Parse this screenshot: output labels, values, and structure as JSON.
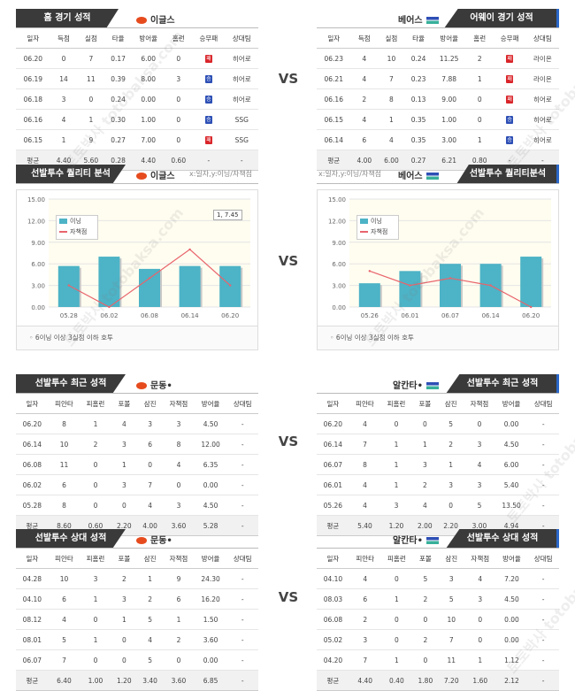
{
  "vs_label": "VS",
  "watermark": "토토박사 totobaksa.com",
  "recent": {
    "left": {
      "title": "홈 경기 성적",
      "team": "이글스",
      "headers": [
        "일자",
        "득점",
        "실점",
        "타율",
        "방어율",
        "홈런",
        "승무패",
        "상대팀"
      ],
      "rows": [
        [
          "06.20",
          "0",
          "7",
          "0.17",
          "6.00",
          "0",
          "패",
          "히어로"
        ],
        [
          "06.19",
          "14",
          "11",
          "0.39",
          "8.00",
          "3",
          "승",
          "히어로"
        ],
        [
          "06.18",
          "3",
          "0",
          "0.24",
          "0.00",
          "0",
          "승",
          "히어로"
        ],
        [
          "06.16",
          "4",
          "1",
          "0.30",
          "1.00",
          "0",
          "승",
          "SSG"
        ],
        [
          "06.15",
          "1",
          "9",
          "0.27",
          "7.00",
          "0",
          "패",
          "SSG"
        ]
      ],
      "avg": [
        "평균",
        "4.40",
        "5.60",
        "0.28",
        "4.40",
        "0.60",
        "-",
        "-"
      ]
    },
    "right": {
      "title": "어웨이 경기 성적",
      "team": "베어스",
      "headers": [
        "일자",
        "득점",
        "실점",
        "타율",
        "방어율",
        "홈런",
        "승무패",
        "상대팀"
      ],
      "rows": [
        [
          "06.23",
          "4",
          "10",
          "0.24",
          "11.25",
          "2",
          "패",
          "라이온"
        ],
        [
          "06.21",
          "4",
          "7",
          "0.23",
          "7.88",
          "1",
          "패",
          "라이온"
        ],
        [
          "06.16",
          "2",
          "8",
          "0.13",
          "9.00",
          "0",
          "패",
          "히어로"
        ],
        [
          "06.15",
          "4",
          "1",
          "0.35",
          "1.00",
          "0",
          "승",
          "히어로"
        ],
        [
          "06.14",
          "6",
          "4",
          "0.35",
          "3.00",
          "1",
          "승",
          "히어로"
        ]
      ],
      "avg": [
        "평균",
        "4.00",
        "6.00",
        "0.27",
        "6.21",
        "0.80",
        "-",
        "-"
      ]
    }
  },
  "quality": {
    "left": {
      "title": "선발투수 퀄리티 분석",
      "team": "이글스",
      "axis_note": "x:일자,y:이닝/자책점",
      "tooltip": "1, 7.45",
      "note": "6이닝 이상 3실점 이하 호투"
    },
    "right": {
      "title": "선발투수 퀄리티분석",
      "team": "베어스",
      "axis_note": "x:일자,y:이닝/자책점",
      "note": "6이닝 이상 3실점 이하 호투"
    }
  },
  "chart_data": [
    {
      "type": "bar",
      "categories": [
        "05.28",
        "06.02",
        "06.08",
        "06.14",
        "06.20"
      ],
      "series": [
        {
          "name": "이닝",
          "kind": "bar",
          "values": [
            5.7,
            7.0,
            5.3,
            5.7,
            5.7
          ]
        },
        {
          "name": "자책점",
          "kind": "line",
          "values": [
            3,
            0,
            4,
            8,
            3
          ]
        }
      ],
      "yticks": [
        "0.00",
        "3.00",
        "6.00",
        "9.00",
        "12.00",
        "15.00"
      ],
      "ylim": [
        0,
        15
      ],
      "colors": {
        "bar": "#4db3c6",
        "line": "#e8646c"
      }
    },
    {
      "type": "bar",
      "categories": [
        "05.26",
        "06.01",
        "06.07",
        "06.14",
        "06.20"
      ],
      "series": [
        {
          "name": "이닝",
          "kind": "bar",
          "values": [
            3.3,
            5.0,
            6.0,
            6.0,
            7.0
          ]
        },
        {
          "name": "자책점",
          "kind": "line",
          "values": [
            5,
            3,
            4,
            3,
            0
          ]
        }
      ],
      "yticks": [
        "0.00",
        "3.00",
        "6.00",
        "9.00",
        "12.00",
        "15.00"
      ],
      "ylim": [
        0,
        15
      ],
      "colors": {
        "bar": "#4db3c6",
        "line": "#e8646c"
      }
    }
  ],
  "pitch_recent": {
    "left": {
      "title": "선발투수 최근 성적",
      "team": "문동•",
      "headers": [
        "일자",
        "피안타",
        "피홈런",
        "포볼",
        "삼진",
        "자책점",
        "방어율",
        "상대팀"
      ],
      "rows": [
        [
          "06.20",
          "8",
          "1",
          "4",
          "3",
          "3",
          "4.50",
          "-"
        ],
        [
          "06.14",
          "10",
          "2",
          "3",
          "6",
          "8",
          "12.00",
          "-"
        ],
        [
          "06.08",
          "11",
          "0",
          "1",
          "0",
          "4",
          "6.35",
          "-"
        ],
        [
          "06.02",
          "6",
          "0",
          "3",
          "7",
          "0",
          "0.00",
          "-"
        ],
        [
          "05.28",
          "8",
          "0",
          "0",
          "4",
          "3",
          "4.50",
          "-"
        ]
      ],
      "avg": [
        "평균",
        "8.60",
        "0.60",
        "2.20",
        "4.00",
        "3.60",
        "5.28",
        "-"
      ]
    },
    "right": {
      "title": "선발투수 최근 성적",
      "team": "알칸타•",
      "headers": [
        "일자",
        "피안타",
        "피홈런",
        "포볼",
        "삼진",
        "자책점",
        "방어율",
        "상대팀"
      ],
      "rows": [
        [
          "06.20",
          "4",
          "0",
          "0",
          "5",
          "0",
          "0.00",
          "-"
        ],
        [
          "06.14",
          "7",
          "1",
          "1",
          "2",
          "3",
          "4.50",
          "-"
        ],
        [
          "06.07",
          "8",
          "1",
          "3",
          "1",
          "4",
          "6.00",
          "-"
        ],
        [
          "06.01",
          "4",
          "1",
          "2",
          "3",
          "3",
          "5.40",
          "-"
        ],
        [
          "05.26",
          "4",
          "3",
          "4",
          "0",
          "5",
          "13.50",
          "-"
        ]
      ],
      "avg": [
        "평균",
        "5.40",
        "1.20",
        "2.00",
        "2.20",
        "3.00",
        "4.94",
        "-"
      ]
    }
  },
  "pitch_vs": {
    "left": {
      "title": "선발투수 상대 성적",
      "team": "문동•",
      "headers": [
        "일자",
        "피안타",
        "피홈런",
        "포볼",
        "삼진",
        "자책점",
        "방어율",
        "상대팀"
      ],
      "rows": [
        [
          "04.28",
          "10",
          "3",
          "2",
          "1",
          "9",
          "24.30",
          "-"
        ],
        [
          "04.10",
          "6",
          "1",
          "3",
          "2",
          "6",
          "16.20",
          "-"
        ],
        [
          "08.12",
          "4",
          "0",
          "1",
          "5",
          "1",
          "1.50",
          "-"
        ],
        [
          "08.01",
          "5",
          "1",
          "0",
          "4",
          "2",
          "3.60",
          "-"
        ],
        [
          "06.07",
          "7",
          "0",
          "0",
          "5",
          "0",
          "0.00",
          "-"
        ]
      ],
      "avg": [
        "평균",
        "6.40",
        "1.00",
        "1.20",
        "3.40",
        "3.60",
        "6.85",
        "-"
      ]
    },
    "right": {
      "title": "선발투수 상대 성적",
      "team": "알칸타•",
      "headers": [
        "일자",
        "피안타",
        "피홈런",
        "포볼",
        "삼진",
        "자책점",
        "방어율",
        "상대팀"
      ],
      "rows": [
        [
          "04.10",
          "4",
          "0",
          "5",
          "3",
          "4",
          "7.20",
          "-"
        ],
        [
          "08.03",
          "6",
          "1",
          "2",
          "5",
          "3",
          "4.50",
          "-"
        ],
        [
          "06.08",
          "2",
          "0",
          "0",
          "10",
          "0",
          "0.00",
          "-"
        ],
        [
          "05.02",
          "3",
          "0",
          "2",
          "7",
          "0",
          "0.00",
          "-"
        ],
        [
          "04.20",
          "7",
          "1",
          "0",
          "11",
          "1",
          "1.12",
          "-"
        ]
      ],
      "avg": [
        "평균",
        "4.40",
        "0.40",
        "1.80",
        "7.20",
        "1.60",
        "2.12",
        "-"
      ]
    }
  }
}
